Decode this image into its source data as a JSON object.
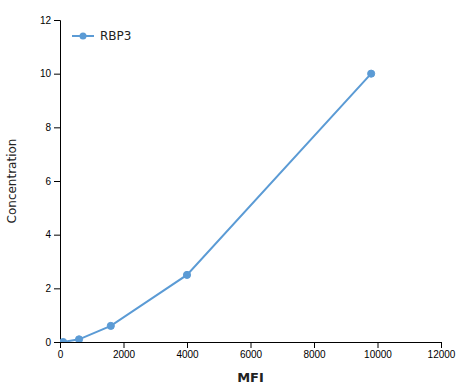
{
  "chart_data": {
    "type": "line",
    "xlabel": "MFI",
    "ylabel": "Concentration",
    "x": [
      100,
      600,
      1600,
      4000,
      9800
    ],
    "series": [
      {
        "name": "RBP3",
        "color": "#5b9bd5",
        "marker": "circle",
        "values": [
          0.0,
          0.1,
          0.6,
          2.5,
          10.0
        ]
      }
    ],
    "xlim": [
      0,
      12000
    ],
    "ylim": [
      0,
      12
    ],
    "xticks": [
      0,
      2000,
      4000,
      6000,
      8000,
      10000,
      12000
    ],
    "yticks": [
      0,
      2,
      4,
      6,
      8,
      10,
      12
    ],
    "grid": false,
    "legend": "upper left"
  }
}
